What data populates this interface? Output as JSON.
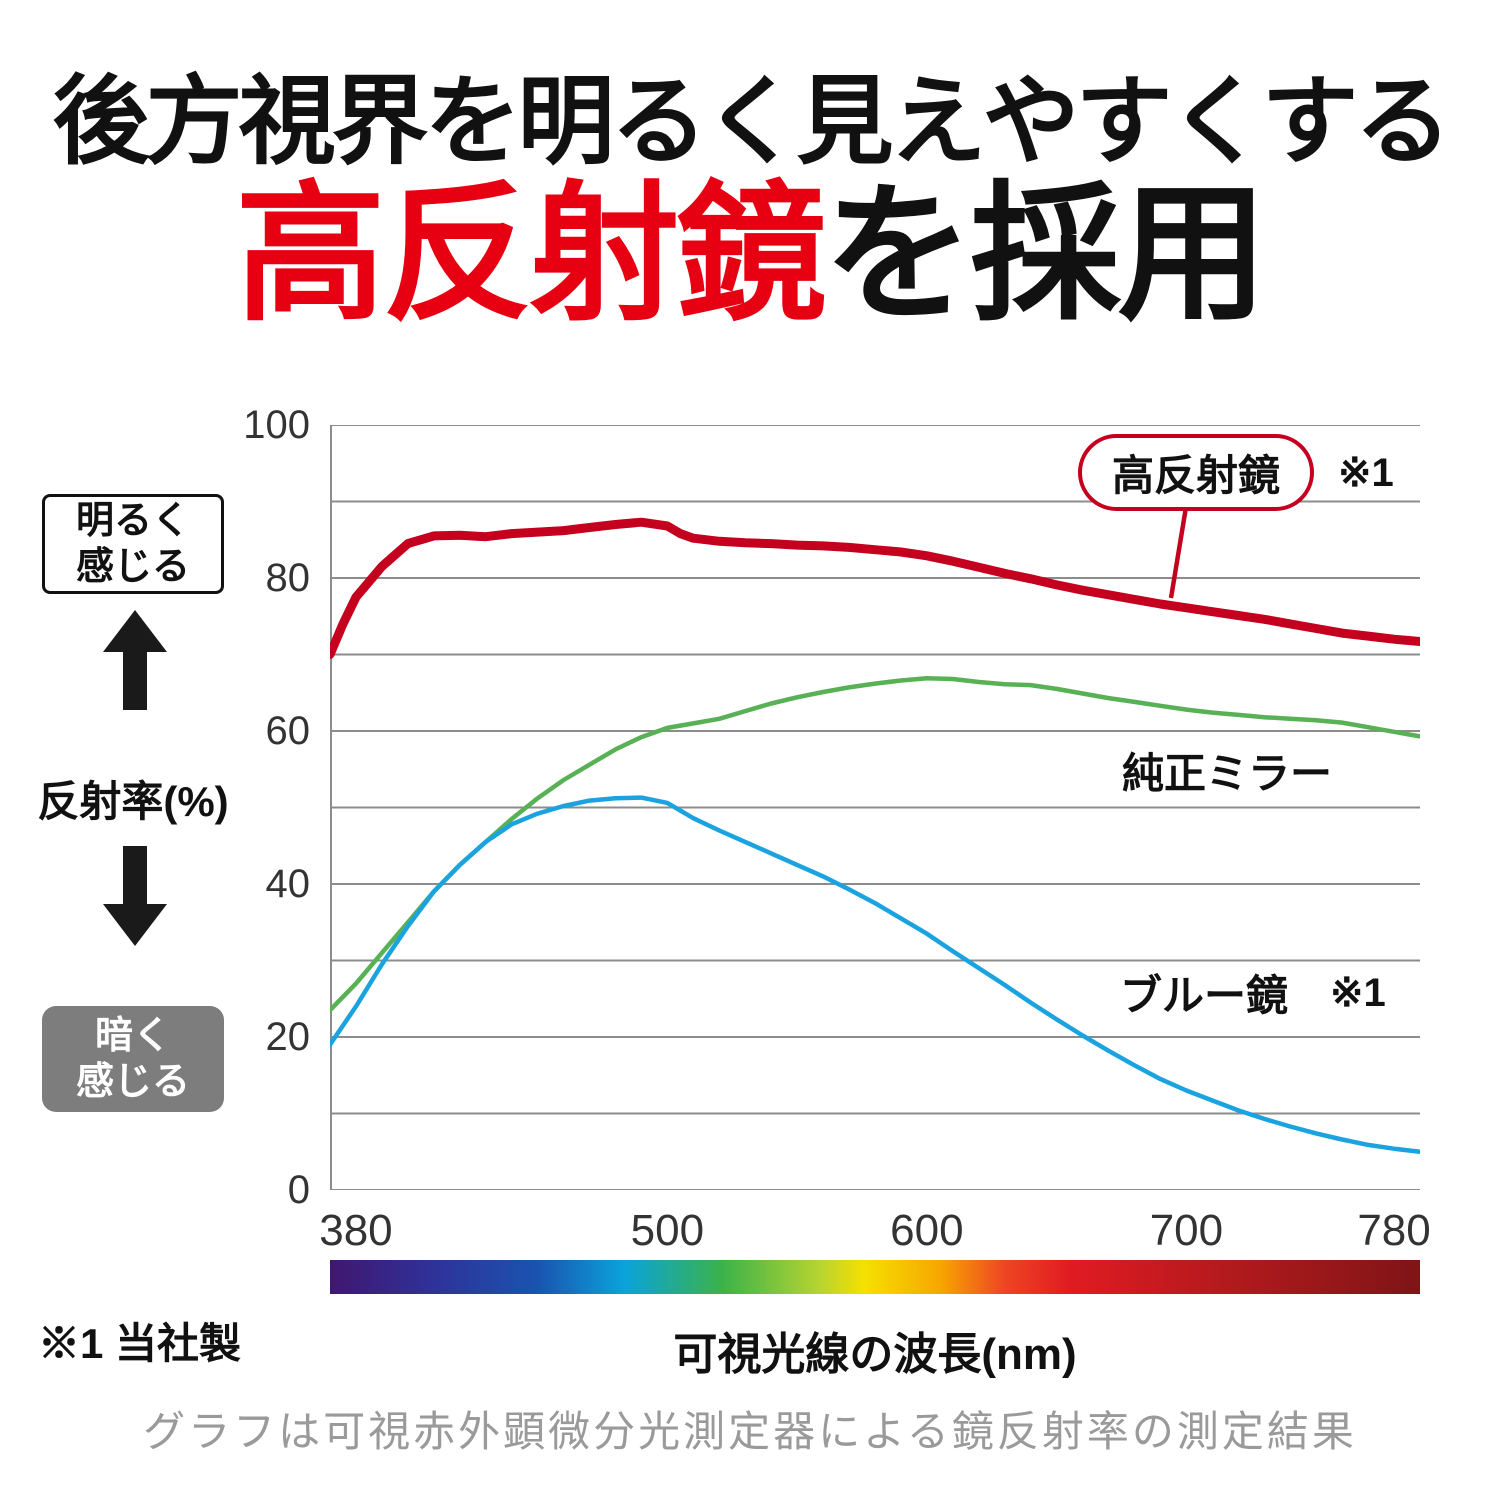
{
  "title": {
    "line1": "後方視界を明るく見えやすくする",
    "line2_highlight": "高反射鏡",
    "line2_rest": "を採用",
    "highlight_color": "#e60012"
  },
  "left_panel": {
    "bright_box": {
      "line1": "明るく",
      "line2": "感じる"
    },
    "axis_label": "反射率(%)",
    "dark_box": {
      "line1": "暗く",
      "line2": "感じる"
    }
  },
  "legend": {
    "high_reflection": {
      "label": "高反射鏡",
      "note": "※1"
    },
    "oem": {
      "label": "純正ミラー"
    },
    "blue": {
      "label": "ブルー鏡",
      "note": "※1"
    }
  },
  "footer": {
    "note": "※1 当社製",
    "xlabel": "可視光線の波長(nm)",
    "caption": "グラフは可視赤外顕微分光測定器による鏡反射率の測定結果"
  },
  "chart_data": {
    "type": "line",
    "title": "",
    "xlabel": "可視光線の波長(nm)",
    "ylabel": "反射率(%)",
    "xlim": [
      370,
      790
    ],
    "ylim": [
      0,
      100
    ],
    "grid_step": 10,
    "grid_color": "#8c8c8c",
    "grid_on": true,
    "legend_position": "inline-annotations",
    "y_ticks": [
      0,
      20,
      40,
      60,
      80,
      100
    ],
    "x_ticks": [
      380,
      500,
      600,
      700,
      780
    ],
    "series": [
      {
        "name": "高反射鏡 ※1",
        "color": "#c4001e",
        "stroke_width": 9,
        "points": [
          [
            370,
            70
          ],
          [
            375,
            74
          ],
          [
            380,
            77.5
          ],
          [
            390,
            81.5
          ],
          [
            400,
            84.5
          ],
          [
            410,
            85.5
          ],
          [
            420,
            85.6
          ],
          [
            430,
            85.4
          ],
          [
            440,
            85.8
          ],
          [
            450,
            86
          ],
          [
            460,
            86.2
          ],
          [
            470,
            86.6
          ],
          [
            480,
            87
          ],
          [
            490,
            87.3
          ],
          [
            500,
            86.8
          ],
          [
            505,
            85.8
          ],
          [
            510,
            85.2
          ],
          [
            520,
            84.8
          ],
          [
            530,
            84.6
          ],
          [
            540,
            84.5
          ],
          [
            550,
            84.3
          ],
          [
            560,
            84.2
          ],
          [
            570,
            84
          ],
          [
            580,
            83.7
          ],
          [
            590,
            83.4
          ],
          [
            600,
            82.9
          ],
          [
            610,
            82.2
          ],
          [
            620,
            81.4
          ],
          [
            630,
            80.6
          ],
          [
            640,
            79.9
          ],
          [
            650,
            79.1
          ],
          [
            660,
            78.4
          ],
          [
            670,
            77.8
          ],
          [
            680,
            77.2
          ],
          [
            690,
            76.6
          ],
          [
            700,
            76.1
          ],
          [
            710,
            75.6
          ],
          [
            720,
            75.1
          ],
          [
            730,
            74.6
          ],
          [
            740,
            74
          ],
          [
            750,
            73.4
          ],
          [
            760,
            72.8
          ],
          [
            770,
            72.4
          ],
          [
            780,
            72
          ],
          [
            790,
            71.7
          ]
        ]
      },
      {
        "name": "純正ミラー",
        "color": "#58b154",
        "stroke_width": 4.5,
        "points": [
          [
            370,
            23.5
          ],
          [
            380,
            27
          ],
          [
            390,
            31
          ],
          [
            400,
            35
          ],
          [
            410,
            39
          ],
          [
            420,
            42.5
          ],
          [
            430,
            45.5
          ],
          [
            440,
            48.5
          ],
          [
            450,
            51.2
          ],
          [
            460,
            53.6
          ],
          [
            470,
            55.6
          ],
          [
            480,
            57.6
          ],
          [
            490,
            59.2
          ],
          [
            500,
            60.4
          ],
          [
            510,
            61
          ],
          [
            520,
            61.6
          ],
          [
            530,
            62.6
          ],
          [
            540,
            63.6
          ],
          [
            550,
            64.4
          ],
          [
            560,
            65.1
          ],
          [
            570,
            65.7
          ],
          [
            580,
            66.2
          ],
          [
            590,
            66.6
          ],
          [
            600,
            66.9
          ],
          [
            610,
            66.8
          ],
          [
            620,
            66.4
          ],
          [
            630,
            66.1
          ],
          [
            640,
            66
          ],
          [
            650,
            65.5
          ],
          [
            660,
            64.9
          ],
          [
            670,
            64.3
          ],
          [
            680,
            63.8
          ],
          [
            690,
            63.3
          ],
          [
            700,
            62.8
          ],
          [
            710,
            62.4
          ],
          [
            720,
            62.1
          ],
          [
            730,
            61.8
          ],
          [
            740,
            61.6
          ],
          [
            750,
            61.4
          ],
          [
            760,
            61.1
          ],
          [
            770,
            60.5
          ],
          [
            780,
            59.9
          ],
          [
            790,
            59.3
          ]
        ]
      },
      {
        "name": "ブルー鏡 ※1",
        "color": "#1ba3e0",
        "stroke_width": 4.5,
        "points": [
          [
            370,
            19
          ],
          [
            380,
            24
          ],
          [
            390,
            29.5
          ],
          [
            400,
            34.5
          ],
          [
            410,
            39
          ],
          [
            420,
            42.5
          ],
          [
            430,
            45.5
          ],
          [
            440,
            47.8
          ],
          [
            450,
            49.2
          ],
          [
            460,
            50.2
          ],
          [
            470,
            50.9
          ],
          [
            480,
            51.2
          ],
          [
            490,
            51.3
          ],
          [
            500,
            50.6
          ],
          [
            510,
            48.6
          ],
          [
            520,
            47
          ],
          [
            530,
            45.5
          ],
          [
            540,
            44
          ],
          [
            550,
            42.5
          ],
          [
            560,
            41
          ],
          [
            570,
            39.3
          ],
          [
            580,
            37.5
          ],
          [
            590,
            35.5
          ],
          [
            600,
            33.5
          ],
          [
            610,
            31.2
          ],
          [
            620,
            29
          ],
          [
            630,
            26.8
          ],
          [
            640,
            24.5
          ],
          [
            650,
            22.3
          ],
          [
            660,
            20.2
          ],
          [
            670,
            18.2
          ],
          [
            680,
            16.3
          ],
          [
            690,
            14.5
          ],
          [
            700,
            13
          ],
          [
            710,
            11.7
          ],
          [
            720,
            10.4
          ],
          [
            730,
            9.3
          ],
          [
            740,
            8.3
          ],
          [
            750,
            7.4
          ],
          [
            760,
            6.6
          ],
          [
            770,
            5.9
          ],
          [
            780,
            5.4
          ],
          [
            790,
            5
          ]
        ]
      }
    ],
    "spectrum_stops": [
      {
        "pos": 0,
        "color": "#40176f"
      },
      {
        "pos": 9,
        "color": "#303097"
      },
      {
        "pos": 19,
        "color": "#1a53b0"
      },
      {
        "pos": 27,
        "color": "#0aa3db"
      },
      {
        "pos": 36,
        "color": "#3bb24a"
      },
      {
        "pos": 45,
        "color": "#b8d430"
      },
      {
        "pos": 49,
        "color": "#f5e000"
      },
      {
        "pos": 56,
        "color": "#f7a600"
      },
      {
        "pos": 62,
        "color": "#ee4423"
      },
      {
        "pos": 68,
        "color": "#e01b22"
      },
      {
        "pos": 82,
        "color": "#b41a1d"
      },
      {
        "pos": 100,
        "color": "#7f1416"
      }
    ]
  }
}
